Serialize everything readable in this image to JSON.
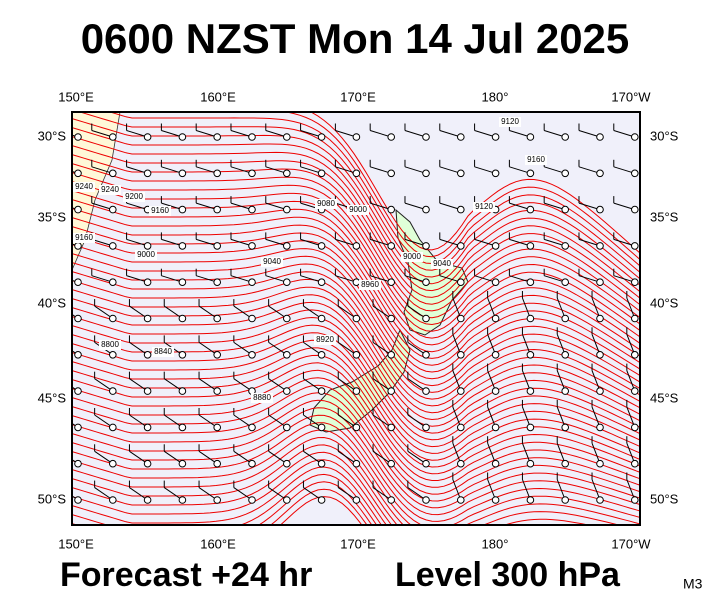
{
  "header": {
    "title": "0600 NZST Mon 14 Jul 2025"
  },
  "map": {
    "top_labels": [
      "150°E",
      "160°E",
      "170°E",
      "180°",
      "170°W"
    ],
    "bottom_labels": [
      "150°E",
      "160°E",
      "170°E",
      "180°",
      "170°W"
    ],
    "left_labels": [
      "30°S",
      "35°S",
      "40°S",
      "45°S",
      "50°S"
    ],
    "right_labels": [
      "30°S",
      "35°S",
      "40°S",
      "45°S",
      "50°S"
    ],
    "contour_labels": [
      "9240",
      "9240",
      "9200",
      "9160",
      "9160",
      "9000",
      "9040",
      "9080",
      "9000",
      "8960",
      "9000",
      "9040",
      "9120",
      "9160",
      "8920",
      "8880",
      "8840",
      "8800",
      "9120"
    ]
  },
  "footer": {
    "forecast": "Forecast +24 hr",
    "level": "Level 300 hPa",
    "model": "M3"
  }
}
